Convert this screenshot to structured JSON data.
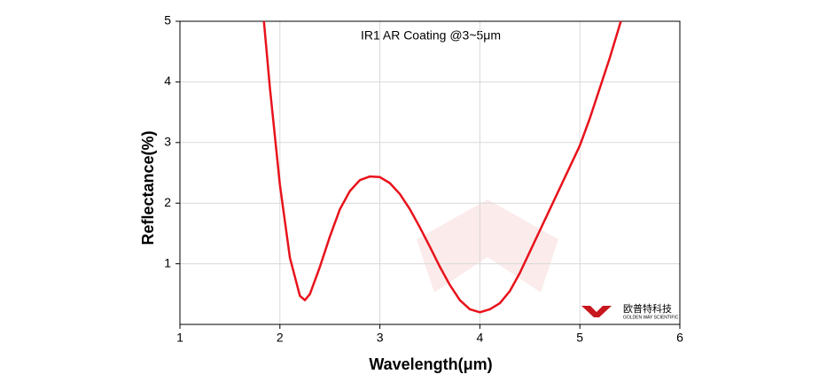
{
  "chart_data": {
    "type": "line",
    "title": "IR1 AR Coating @3~5μm",
    "x_label": "Wavelength(μm)",
    "y_label": "Reflectance(%)",
    "x": [
      1.84,
      1.9,
      2.0,
      2.1,
      2.2,
      2.25,
      2.3,
      2.4,
      2.5,
      2.6,
      2.7,
      2.8,
      2.9,
      3.0,
      3.1,
      3.2,
      3.3,
      3.4,
      3.5,
      3.6,
      3.7,
      3.8,
      3.9,
      4.0,
      4.1,
      4.2,
      4.3,
      4.4,
      4.5,
      4.6,
      4.7,
      4.8,
      4.9,
      5.0,
      5.1,
      5.2,
      5.3,
      5.41
    ],
    "series": [
      {
        "color": "#e8121b",
        "values": [
          5.0,
          3.9,
          2.3,
          1.1,
          0.47,
          0.4,
          0.5,
          0.95,
          1.45,
          1.9,
          2.2,
          2.38,
          2.44,
          2.43,
          2.33,
          2.15,
          1.9,
          1.6,
          1.28,
          0.95,
          0.65,
          0.4,
          0.25,
          0.2,
          0.25,
          0.35,
          0.55,
          0.85,
          1.2,
          1.55,
          1.9,
          2.25,
          2.6,
          2.95,
          3.4,
          3.9,
          4.4,
          5.0
        ]
      }
    ],
    "xlim": [
      1,
      6
    ],
    "xticks": [
      1,
      2,
      3,
      4,
      5,
      6
    ],
    "ylim": [
      0,
      5
    ],
    "yticks": [
      1,
      2,
      3,
      4,
      5
    ],
    "grid": true,
    "watermark": {
      "name": "欧普特科技",
      "subtitle": "GOLDEN WAY SCIENTIFIC"
    }
  }
}
